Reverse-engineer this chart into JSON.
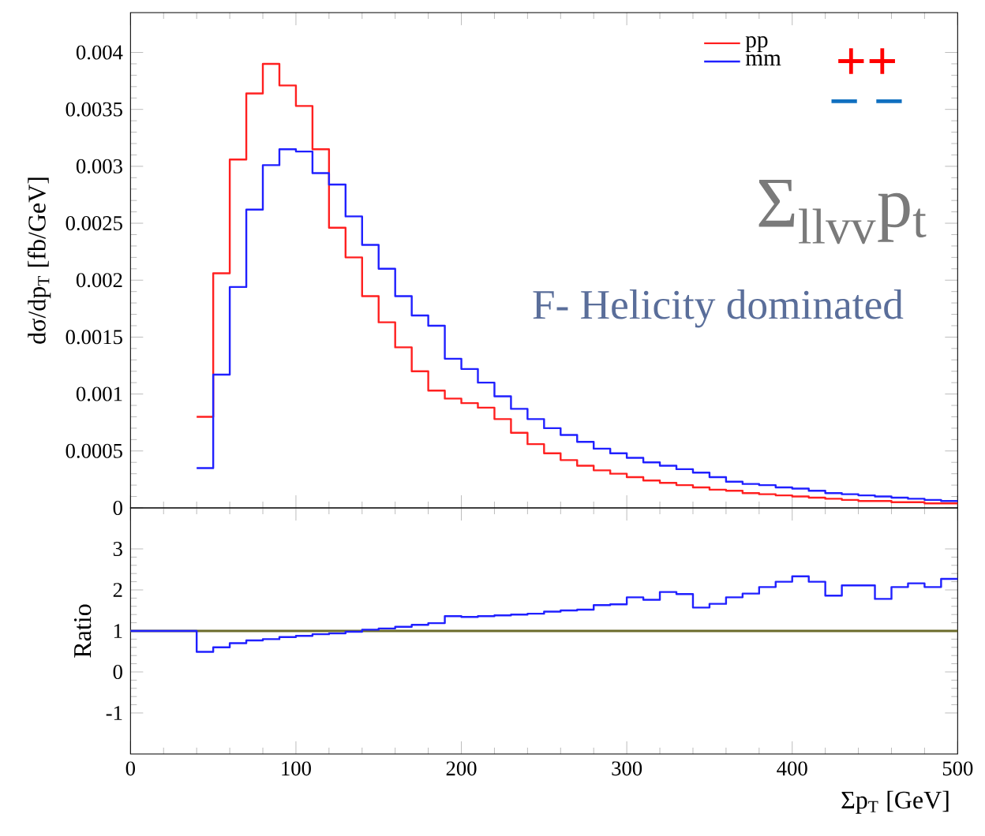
{
  "chart_data": [
    {
      "type": "histogram",
      "ylabel": "dσ/dp$_{T}$ [fb/GeV]",
      "bins": [
        40,
        50,
        60,
        70,
        80,
        90,
        100,
        110,
        120,
        130,
        140,
        150,
        160,
        170,
        180,
        190,
        200,
        210,
        220,
        230,
        240,
        250,
        260,
        270,
        280,
        290,
        300,
        310,
        320,
        330,
        340,
        350,
        360,
        370,
        380,
        390,
        400,
        410,
        420,
        430,
        440,
        450,
        460,
        470,
        480,
        490,
        500
      ],
      "series": [
        {
          "name": "pp",
          "color": "#ff2020",
          "values": [
            0.0008,
            0.00206,
            0.00306,
            0.00364,
            0.0039,
            0.00371,
            0.00353,
            0.00315,
            0.00246,
            0.0022,
            0.00186,
            0.00163,
            0.00141,
            0.0012,
            0.00103,
            0.00096,
            0.00092,
            0.00088,
            0.00078,
            0.00066,
            0.00056,
            0.00048,
            0.00042,
            0.00037,
            0.00033,
            0.0003,
            0.00027,
            0.00024,
            0.00022,
            0.0002,
            0.00018,
            0.00016,
            0.00015,
            0.00013,
            0.00012,
            0.00011,
            0.0001,
            9e-05,
            8e-05,
            7e-05,
            6e-05,
            6e-05,
            5e-05,
            5e-05,
            4e-05,
            4e-05
          ]
        },
        {
          "name": "mm",
          "color": "#2020ff",
          "values": [
            0.00035,
            0.00117,
            0.00194,
            0.00262,
            0.00301,
            0.00315,
            0.00313,
            0.00294,
            0.00284,
            0.00256,
            0.00231,
            0.0021,
            0.00186,
            0.00169,
            0.0016,
            0.00131,
            0.00122,
            0.0011,
            0.00098,
            0.00087,
            0.00078,
            0.0007,
            0.00064,
            0.00058,
            0.00052,
            0.00048,
            0.00044,
            0.0004,
            0.00037,
            0.00034,
            0.00031,
            0.00027,
            0.00023,
            0.00021,
            0.0002,
            0.00018,
            0.00017,
            0.00015,
            0.00013,
            0.00012,
            0.00011,
            0.0001,
            9e-05,
            8e-05,
            7e-05,
            6e-05
          ]
        }
      ],
      "xlim": [
        0,
        500
      ],
      "xticks": [
        0,
        100,
        200,
        300,
        400,
        500
      ],
      "ylim": [
        0,
        0.00435
      ],
      "yticks": [
        0,
        0.0005,
        0.001,
        0.0015,
        0.002,
        0.0025,
        0.003,
        0.0035,
        0.004
      ],
      "tick_labels": "y",
      "legend": "top right",
      "annotations": [
        "Σ$_{llvv}$p$_{t}$",
        "F- Helicity dominated",
        "++",
        "− −"
      ]
    },
    {
      "type": "histogram",
      "ylabel": "Ratio",
      "xlabel": "Σp$_{T}$ [GeV]",
      "bins": [
        0,
        10,
        20,
        30,
        40,
        50,
        60,
        70,
        80,
        90,
        100,
        110,
        120,
        130,
        140,
        150,
        160,
        170,
        180,
        190,
        200,
        210,
        220,
        230,
        240,
        250,
        260,
        270,
        280,
        290,
        300,
        310,
        320,
        330,
        340,
        350,
        360,
        370,
        380,
        390,
        400,
        410,
        420,
        430,
        440,
        450,
        460,
        470,
        480,
        490,
        500
      ],
      "series": [
        {
          "color": "#2020ff",
          "values": [
            1,
            1,
            1,
            1,
            0.49,
            0.6,
            0.7,
            0.77,
            0.8,
            0.85,
            0.88,
            0.92,
            0.94,
            0.98,
            1.03,
            1.06,
            1.1,
            1.15,
            1.19,
            1.36,
            1.34,
            1.36,
            1.38,
            1.4,
            1.42,
            1.47,
            1.5,
            1.52,
            1.63,
            1.65,
            1.82,
            1.76,
            1.95,
            1.9,
            1.57,
            1.66,
            1.82,
            1.91,
            2.07,
            2.2,
            2.33,
            2.2,
            1.86,
            2.11,
            2.11,
            1.78,
            2.07,
            2.16,
            2.07,
            2.27
          ]
        }
      ],
      "xlim": [
        0,
        500
      ],
      "xticks": [
        0,
        100,
        200,
        300,
        400,
        500
      ],
      "ylim": [
        -2,
        4
      ],
      "yticks": [
        -1,
        0,
        1,
        2,
        3
      ],
      "ref_lines": [
        {
          "axis": "y",
          "value": 1,
          "color": "#6b6b2a"
        }
      ]
    }
  ]
}
